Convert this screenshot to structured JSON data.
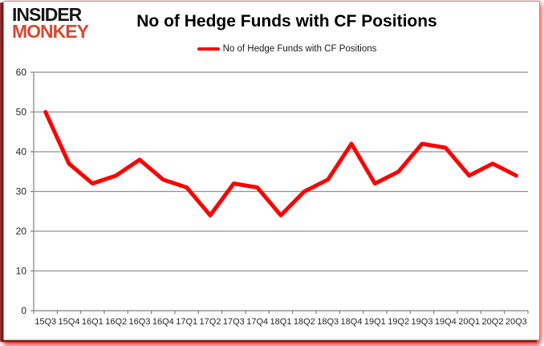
{
  "branding": {
    "logo_line1": "INSIDER",
    "logo_line2": "MONKEY",
    "logo_accent_color": "#d8492f"
  },
  "header": {
    "title": "No of Hedge Funds with CF Positions"
  },
  "legend": {
    "label": "No of Hedge Funds with CF Positions",
    "marker_color": "#fe0000"
  },
  "colors": {
    "series_line": "#fe0000",
    "gridline": "#909090",
    "axis": "#808080",
    "tick_label": "#262626"
  },
  "chart_data": {
    "type": "line",
    "title": "No of Hedge Funds with CF Positions",
    "categories": [
      "15Q3",
      "15Q4",
      "16Q1",
      "16Q2",
      "16Q3",
      "16Q4",
      "17Q1",
      "17Q2",
      "17Q3",
      "17Q4",
      "18Q1",
      "18Q2",
      "18Q3",
      "18Q4",
      "19Q1",
      "19Q2",
      "19Q3",
      "19Q4",
      "20Q1",
      "20Q2",
      "20Q3"
    ],
    "series": [
      {
        "name": "No of Hedge Funds with CF Positions",
        "color": "#fe0000",
        "values": [
          50,
          37,
          32,
          34,
          38,
          33,
          31,
          24,
          32,
          31,
          24,
          30,
          33,
          42,
          32,
          35,
          42,
          41,
          34,
          37,
          34
        ]
      }
    ],
    "xlabel": "",
    "ylabel": "",
    "ylim": [
      0,
      60
    ],
    "yticks": [
      0,
      10,
      20,
      30,
      40,
      50,
      60
    ],
    "grid": true,
    "legend_position": "top-center"
  }
}
